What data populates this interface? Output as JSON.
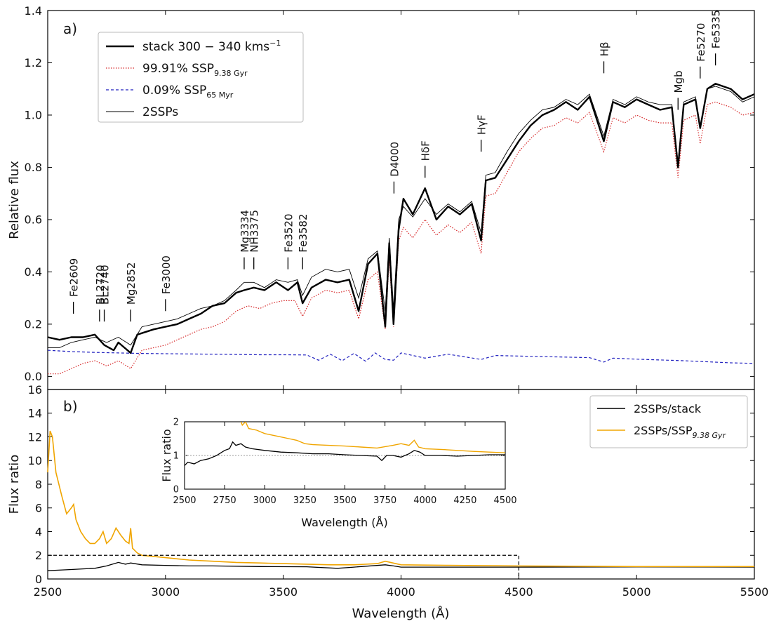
{
  "colors": {
    "stack": "#000000",
    "old_ssp": "#d62728",
    "young_ssp": "#1f1fbf",
    "two_ssp": "#000000",
    "ratio_stack": "#000000",
    "ratio_old": "#f0a500",
    "ref_line": "#999999"
  },
  "chart_data": [
    {
      "panel_label": "a)",
      "type": "line",
      "xlabel": "",
      "ylabel": "Relative flux",
      "xlim": [
        2500,
        5500
      ],
      "ylim": [
        -0.05,
        1.4
      ],
      "x_ticks": [
        2500,
        3000,
        3500,
        4000,
        4500,
        5000,
        5500
      ],
      "y_ticks": [
        0.0,
        0.2,
        0.4,
        0.6,
        0.8,
        1.0,
        1.2,
        1.4
      ],
      "y_tick_labels": [
        "0.0",
        "0.2",
        "0.4",
        "0.6",
        "0.8",
        "1.0",
        "1.2",
        "1.4"
      ],
      "legend_position": "upper-left",
      "legend": [
        {
          "label": "stack 300 − 340 kms",
          "sup": "−1",
          "sub": "",
          "style": "thick"
        },
        {
          "label": "99.91% SSP",
          "sup": "",
          "sub": "9.38 Gyr",
          "style": "dotted-red"
        },
        {
          "label": "0.09% SSP",
          "sup": "",
          "sub": "65 Myr",
          "style": "dashed-blue"
        },
        {
          "label": "2SSPs",
          "sup": "",
          "sub": "",
          "style": "thin"
        }
      ],
      "series": [
        {
          "name": "stack 300 − 340 kms−1",
          "x": [
            2500,
            2550,
            2600,
            2650,
            2700,
            2720,
            2740,
            2780,
            2800,
            2852,
            2880,
            2950,
            3000,
            3050,
            3100,
            3150,
            3200,
            3250,
            3300,
            3334,
            3375,
            3420,
            3470,
            3520,
            3560,
            3582,
            3620,
            3680,
            3730,
            3780,
            3820,
            3860,
            3900,
            3933,
            3950,
            3968,
            3990,
            4010,
            4050,
            4102,
            4150,
            4200,
            4250,
            4300,
            4340,
            4360,
            4400,
            4450,
            4500,
            4550,
            4600,
            4650,
            4700,
            4750,
            4800,
            4861,
            4900,
            4950,
            5000,
            5050,
            5100,
            5150,
            5176,
            5200,
            5250,
            5270,
            5300,
            5335,
            5400,
            5450,
            5500
          ],
          "y": [
            0.15,
            0.14,
            0.15,
            0.15,
            0.16,
            0.14,
            0.12,
            0.1,
            0.13,
            0.09,
            0.16,
            0.18,
            0.19,
            0.2,
            0.22,
            0.24,
            0.27,
            0.28,
            0.32,
            0.33,
            0.34,
            0.33,
            0.36,
            0.33,
            0.36,
            0.28,
            0.34,
            0.37,
            0.36,
            0.37,
            0.25,
            0.43,
            0.47,
            0.19,
            0.51,
            0.2,
            0.56,
            0.68,
            0.62,
            0.72,
            0.6,
            0.65,
            0.62,
            0.66,
            0.52,
            0.75,
            0.76,
            0.83,
            0.9,
            0.96,
            1.0,
            1.02,
            1.05,
            1.02,
            1.07,
            0.9,
            1.05,
            1.03,
            1.06,
            1.04,
            1.02,
            1.03,
            0.8,
            1.04,
            1.06,
            0.95,
            1.1,
            1.12,
            1.1,
            1.06,
            1.08
          ]
        },
        {
          "name": "99.91% SSP9.38 Gyr",
          "x": [
            2500,
            2550,
            2600,
            2650,
            2700,
            2750,
            2800,
            2852,
            2900,
            2950,
            3000,
            3050,
            3100,
            3150,
            3200,
            3250,
            3300,
            3350,
            3400,
            3450,
            3500,
            3550,
            3582,
            3620,
            3680,
            3730,
            3780,
            3820,
            3860,
            3900,
            3933,
            3950,
            3968,
            3990,
            4010,
            4050,
            4102,
            4150,
            4200,
            4250,
            4300,
            4340,
            4360,
            4400,
            4450,
            4500,
            4550,
            4600,
            4650,
            4700,
            4750,
            4800,
            4861,
            4900,
            4950,
            5000,
            5050,
            5100,
            5150,
            5176,
            5200,
            5250,
            5270,
            5300,
            5335,
            5400,
            5450,
            5500
          ],
          "y": [
            0.01,
            0.01,
            0.03,
            0.05,
            0.06,
            0.04,
            0.06,
            0.03,
            0.1,
            0.11,
            0.12,
            0.14,
            0.16,
            0.18,
            0.19,
            0.21,
            0.25,
            0.27,
            0.26,
            0.28,
            0.29,
            0.29,
            0.23,
            0.3,
            0.33,
            0.32,
            0.33,
            0.22,
            0.37,
            0.4,
            0.18,
            0.45,
            0.19,
            0.52,
            0.57,
            0.53,
            0.6,
            0.54,
            0.58,
            0.55,
            0.59,
            0.47,
            0.69,
            0.7,
            0.78,
            0.86,
            0.91,
            0.95,
            0.96,
            0.99,
            0.97,
            1.01,
            0.86,
            0.99,
            0.97,
            1.0,
            0.98,
            0.97,
            0.97,
            0.76,
            0.98,
            1.0,
            0.89,
            1.04,
            1.05,
            1.03,
            1.0,
            1.01
          ]
        },
        {
          "name": "0.09% SSP65 Myr",
          "x": [
            2500,
            2600,
            2700,
            2800,
            2900,
            3000,
            3200,
            3400,
            3500,
            3600,
            3650,
            3700,
            3750,
            3800,
            3850,
            3890,
            3933,
            3968,
            4000,
            4102,
            4200,
            4340,
            4400,
            4600,
            4800,
            4861,
            4900,
            5000,
            5200,
            5400,
            5500
          ],
          "y": [
            0.1,
            0.095,
            0.092,
            0.09,
            0.088,
            0.087,
            0.085,
            0.083,
            0.083,
            0.082,
            0.062,
            0.085,
            0.06,
            0.088,
            0.058,
            0.09,
            0.065,
            0.062,
            0.09,
            0.07,
            0.085,
            0.065,
            0.08,
            0.076,
            0.072,
            0.055,
            0.07,
            0.066,
            0.06,
            0.052,
            0.05
          ]
        },
        {
          "name": "2SSPs",
          "x": [
            2500,
            2550,
            2600,
            2650,
            2700,
            2750,
            2800,
            2852,
            2900,
            2950,
            3000,
            3050,
            3100,
            3150,
            3200,
            3250,
            3300,
            3334,
            3375,
            3420,
            3470,
            3520,
            3560,
            3582,
            3620,
            3680,
            3730,
            3780,
            3820,
            3860,
            3900,
            3933,
            3950,
            3968,
            3990,
            4010,
            4050,
            4102,
            4150,
            4200,
            4250,
            4300,
            4340,
            4360,
            4400,
            4450,
            4500,
            4550,
            4600,
            4650,
            4700,
            4750,
            4800,
            4861,
            4900,
            4950,
            5000,
            5050,
            5100,
            5150,
            5176,
            5200,
            5250,
            5270,
            5300,
            5335,
            5400,
            5450,
            5500
          ],
          "y": [
            0.11,
            0.11,
            0.13,
            0.14,
            0.15,
            0.13,
            0.15,
            0.12,
            0.19,
            0.2,
            0.21,
            0.22,
            0.24,
            0.26,
            0.27,
            0.29,
            0.33,
            0.36,
            0.36,
            0.34,
            0.37,
            0.36,
            0.37,
            0.31,
            0.38,
            0.41,
            0.4,
            0.41,
            0.3,
            0.45,
            0.48,
            0.25,
            0.53,
            0.26,
            0.6,
            0.65,
            0.61,
            0.68,
            0.62,
            0.66,
            0.63,
            0.67,
            0.55,
            0.77,
            0.78,
            0.86,
            0.93,
            0.98,
            1.02,
            1.03,
            1.06,
            1.04,
            1.08,
            0.92,
            1.06,
            1.04,
            1.07,
            1.05,
            1.04,
            1.04,
            0.82,
            1.05,
            1.07,
            0.96,
            1.1,
            1.11,
            1.09,
            1.05,
            1.07
          ]
        }
      ],
      "annotations": [
        {
          "label": "Fe2609",
          "wavelength": 2609,
          "flux": 0.24
        },
        {
          "label": "BL2720",
          "wavelength": 2720,
          "flux": 0.21
        },
        {
          "label": "BL2740",
          "wavelength": 2740,
          "flux": 0.21
        },
        {
          "label": "Mg2852",
          "wavelength": 2852,
          "flux": 0.21
        },
        {
          "label": "Fe3000",
          "wavelength": 3000,
          "flux": 0.25
        },
        {
          "label": "Mg3334",
          "wavelength": 3334,
          "flux": 0.41
        },
        {
          "label": "NH3375",
          "wavelength": 3375,
          "flux": 0.41
        },
        {
          "label": "Fe3520",
          "wavelength": 3520,
          "flux": 0.41
        },
        {
          "label": "Fe3582",
          "wavelength": 3582,
          "flux": 0.41
        },
        {
          "label": "D4000",
          "wavelength": 3970,
          "flux": 0.7
        },
        {
          "label": "HδF",
          "wavelength": 4102,
          "flux": 0.76
        },
        {
          "label": "HγF",
          "wavelength": 4340,
          "flux": 0.86
        },
        {
          "label": "Hβ",
          "wavelength": 4861,
          "flux": 1.16
        },
        {
          "label": "Mgb",
          "wavelength": 5176,
          "flux": 1.02
        },
        {
          "label": "Fe5270",
          "wavelength": 5270,
          "flux": 1.14
        },
        {
          "label": "Fe5335",
          "wavelength": 5335,
          "flux": 1.19
        }
      ]
    },
    {
      "panel_label": "b)",
      "type": "line",
      "xlabel": "Wavelength (Å)",
      "ylabel": "Flux ratio",
      "xlim": [
        2500,
        5500
      ],
      "ylim": [
        0,
        16
      ],
      "x_ticks": [
        2500,
        3000,
        3500,
        4000,
        4500,
        5000,
        5500
      ],
      "y_ticks": [
        0,
        2,
        4,
        6,
        8,
        10,
        12,
        14,
        16
      ],
      "legend_position": "upper-right",
      "legend": [
        {
          "label": "2SSPs/stack",
          "sub": ""
        },
        {
          "label": "2SSPs/SSP",
          "sub": "9.38 Gyr"
        }
      ],
      "zoom_box": {
        "x": [
          2500,
          4500
        ],
        "y": [
          0,
          2
        ]
      },
      "series": [
        {
          "name": "2SSPs/stack",
          "x": [
            2500,
            2600,
            2700,
            2750,
            2800,
            2830,
            2852,
            2900,
            3000,
            3100,
            3200,
            3400,
            3600,
            3730,
            3800,
            3933,
            3968,
            4000,
            4200,
            4500,
            5000,
            5500
          ],
          "y": [
            0.7,
            0.8,
            0.9,
            1.1,
            1.4,
            1.25,
            1.35,
            1.2,
            1.15,
            1.1,
            1.1,
            1.05,
            1.03,
            0.9,
            1.0,
            1.2,
            1.1,
            1.0,
            1.0,
            1.0,
            1.02,
            1.0
          ]
        },
        {
          "name": "2SSPs/SSP9.38 Gyr",
          "x": [
            2500,
            2510,
            2520,
            2535,
            2560,
            2580,
            2600,
            2610,
            2620,
            2640,
            2660,
            2680,
            2700,
            2720,
            2735,
            2750,
            2770,
            2790,
            2810,
            2830,
            2845,
            2852,
            2860,
            2880,
            2900,
            2950,
            3000,
            3050,
            3100,
            3200,
            3300,
            3400,
            3500,
            3600,
            3700,
            3800,
            3900,
            3933,
            4000,
            4200,
            4500,
            5000,
            5500
          ],
          "y": [
            9.0,
            12.5,
            12.0,
            9.0,
            7.0,
            5.5,
            6.0,
            6.3,
            5.0,
            4.0,
            3.4,
            3.0,
            3.0,
            3.4,
            4.0,
            3.0,
            3.4,
            4.3,
            3.7,
            3.2,
            3.0,
            4.3,
            2.6,
            2.2,
            2.0,
            1.9,
            1.8,
            1.7,
            1.6,
            1.5,
            1.4,
            1.35,
            1.3,
            1.25,
            1.2,
            1.2,
            1.3,
            1.5,
            1.2,
            1.15,
            1.1,
            1.05,
            1.05
          ]
        }
      ]
    },
    {
      "panel_label": "",
      "type": "line",
      "xlabel": "Wavelength (Å)",
      "ylabel": "Flux ratio",
      "xlim": [
        2500,
        4500
      ],
      "ylim": [
        0,
        2
      ],
      "x_ticks": [
        2500,
        2750,
        3000,
        3250,
        3500,
        3750,
        4000,
        4250,
        4500
      ],
      "y_ticks": [
        0,
        1,
        2
      ],
      "reference_line": 1,
      "series": [
        {
          "name": "2SSPs/stack",
          "x": [
            2500,
            2520,
            2560,
            2600,
            2650,
            2700,
            2750,
            2780,
            2800,
            2820,
            2852,
            2880,
            2920,
            3000,
            3100,
            3200,
            3300,
            3400,
            3500,
            3600,
            3700,
            3730,
            3760,
            3800,
            3850,
            3900,
            3933,
            3968,
            4000,
            4100,
            4200,
            4300,
            4400,
            4500
          ],
          "y": [
            0.7,
            0.8,
            0.75,
            0.85,
            0.9,
            1.0,
            1.15,
            1.2,
            1.4,
            1.3,
            1.35,
            1.25,
            1.2,
            1.15,
            1.1,
            1.08,
            1.05,
            1.05,
            1.02,
            1.0,
            0.98,
            0.85,
            1.0,
            1.0,
            0.95,
            1.05,
            1.15,
            1.1,
            1.0,
            1.0,
            0.98,
            1.0,
            1.02,
            1.02
          ]
        },
        {
          "name": "2SSPs/SSP9.38 Gyr",
          "x": [
            2852,
            2860,
            2880,
            2900,
            2950,
            3000,
            3050,
            3100,
            3150,
            3200,
            3250,
            3300,
            3400,
            3500,
            3600,
            3700,
            3800,
            3850,
            3900,
            3933,
            3960,
            4000,
            4100,
            4200,
            4300,
            4400,
            4500
          ],
          "y": [
            2.0,
            1.9,
            2.0,
            1.8,
            1.75,
            1.65,
            1.6,
            1.55,
            1.5,
            1.45,
            1.35,
            1.32,
            1.3,
            1.28,
            1.25,
            1.22,
            1.3,
            1.35,
            1.3,
            1.45,
            1.25,
            1.2,
            1.18,
            1.15,
            1.12,
            1.1,
            1.08
          ]
        }
      ]
    }
  ]
}
